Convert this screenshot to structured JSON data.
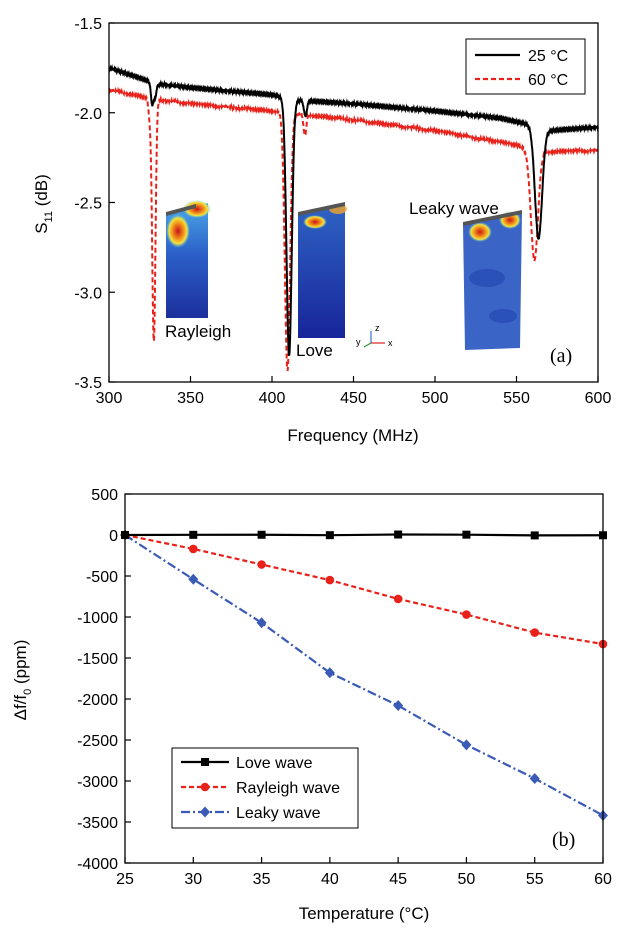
{
  "chart_data": [
    {
      "type": "line",
      "panel_label": "(a)",
      "xlabel": "Frequency (MHz)",
      "ylabel": "S11 (dB)",
      "ylabel_main": "S",
      "ylabel_sub": "11",
      "ylabel_unit": " (dB)",
      "xlim": [
        300,
        600
      ],
      "ylim": [
        -3.5,
        -1.5
      ],
      "xticks": [
        300,
        350,
        400,
        450,
        500,
        550,
        600
      ],
      "xtick_labels": [
        "300",
        "350",
        "400",
        "450",
        "500",
        "550",
        "600"
      ],
      "yticks": [
        -3.5,
        -3.0,
        -2.5,
        -2.0,
        -1.5
      ],
      "ytick_labels": [
        "-3.5",
        "-3.0",
        "-2.5",
        "-2.0",
        "-1.5"
      ],
      "legend_position": "top-right",
      "grid": false,
      "series": [
        {
          "name": "25 °C",
          "color": "#000000",
          "style": "solid",
          "baseline": {
            "x": [
              300,
              330,
              350,
              400,
              415,
              450,
              500,
              540,
              560,
              570,
              600
            ],
            "y": [
              -1.75,
              -1.84,
              -1.86,
              -1.9,
              -1.93,
              -1.95,
              -1.99,
              -2.03,
              -2.07,
              -2.1,
              -2.08
            ]
          },
          "resonances": [
            {
              "x": 326.5,
              "y": -1.95,
              "width": 0.8
            },
            {
              "x": 328.3,
              "y": -1.91,
              "width": 0.8
            },
            {
              "x": 410.5,
              "y": -3.35,
              "width": 1.6
            },
            {
              "x": 420.5,
              "y": -2.02,
              "width": 0.9
            },
            {
              "x": 563.5,
              "y": -2.7,
              "width": 2.2
            }
          ]
        },
        {
          "name": "60 °C",
          "color": "#e8221b",
          "style": "dashed",
          "baseline": {
            "x": [
              300,
              325,
              350,
              400,
              450,
              500,
              550,
              560,
              600
            ],
            "y": [
              -1.87,
              -1.92,
              -1.95,
              -1.99,
              -2.04,
              -2.1,
              -2.18,
              -2.22,
              -2.21
            ]
          },
          "resonances": [
            {
              "x": 325.0,
              "y": -2.02,
              "width": 0.8
            },
            {
              "x": 327.5,
              "y": -3.28,
              "width": 1.0
            },
            {
              "x": 409.5,
              "y": -3.44,
              "width": 1.6
            },
            {
              "x": 420.2,
              "y": -2.13,
              "width": 0.8
            },
            {
              "x": 561.0,
              "y": -2.82,
              "width": 2.2
            }
          ]
        }
      ],
      "annotations": [
        "Rayleigh",
        "Love",
        "Leaky wave"
      ],
      "axis_triad": [
        "x",
        "y",
        "z"
      ]
    },
    {
      "type": "line",
      "panel_label": "(b)",
      "xlabel": "Temperature (°C)",
      "ylabel": "Δf/f0 (ppm)",
      "ylabel_main": "Δf/f",
      "ylabel_sub": "0",
      "ylabel_unit": " (ppm)",
      "xlim": [
        25,
        60
      ],
      "ylim": [
        -4000,
        500
      ],
      "xticks": [
        25,
        30,
        35,
        40,
        45,
        50,
        55,
        60
      ],
      "xtick_labels": [
        "25",
        "30",
        "35",
        "40",
        "45",
        "50",
        "55",
        "60"
      ],
      "yticks": [
        -4000,
        -3500,
        -3000,
        -2500,
        -2000,
        -1500,
        -1000,
        -500,
        0,
        500
      ],
      "ytick_labels": [
        "-4000",
        "-3500",
        "-3000",
        "-2500",
        "-2000",
        "-1500",
        "-1000",
        "-500",
        "0",
        "500"
      ],
      "legend_position": "bottom-left",
      "grid": false,
      "x": [
        25,
        30,
        35,
        40,
        45,
        50,
        55,
        60
      ],
      "series": [
        {
          "name": "Love wave",
          "color": "#000000",
          "style": "solid",
          "marker": "square",
          "values": [
            0,
            2,
            3,
            -2,
            6,
            4,
            -5,
            -3
          ]
        },
        {
          "name": "Rayleigh wave",
          "color": "#e8221b",
          "style": "dashed",
          "marker": "circle",
          "values": [
            0,
            -170,
            -360,
            -550,
            -780,
            -970,
            -1190,
            -1330
          ]
        },
        {
          "name": "Leaky wave",
          "color": "#3a5bb5",
          "style": "dashdot",
          "marker": "diamond",
          "values": [
            0,
            -540,
            -1070,
            -1680,
            -2080,
            -2560,
            -2970,
            -3420
          ]
        }
      ]
    }
  ]
}
